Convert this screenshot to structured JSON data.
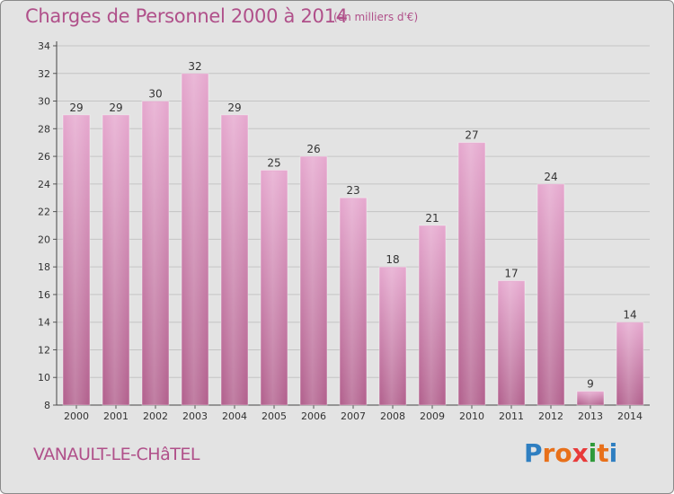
{
  "title": "Charges de Personnel 2000 à 2014",
  "subtitle": "(en milliers d'€)",
  "commune": "VANAULT-LE-CHâTEL",
  "logo": {
    "letters": [
      "P",
      "r",
      "o",
      "x",
      "i",
      "t",
      "i"
    ],
    "colors": [
      "#2f7fc1",
      "#e8701a",
      "#e8701a",
      "#e83a3a",
      "#2f9a3a",
      "#e8701a",
      "#2f7fc1"
    ]
  },
  "colors": {
    "background": "#e3e3e3",
    "bar_top": "#e6a9cf",
    "bar_bottom": "#b3638f",
    "title": "#b0508a",
    "grid": "#c4c4c4"
  },
  "chart_data": {
    "type": "bar",
    "categories": [
      "2000",
      "2001",
      "2002",
      "2003",
      "2004",
      "2005",
      "2006",
      "2007",
      "2008",
      "2009",
      "2010",
      "2011",
      "2012",
      "2013",
      "2014"
    ],
    "values": [
      29,
      29,
      30,
      32,
      29,
      25,
      26,
      23,
      18,
      21,
      27,
      17,
      24,
      9,
      14
    ],
    "data_labels": [
      "29",
      "29",
      "30",
      "32",
      "29",
      "25",
      "26",
      "23",
      "18",
      "21",
      "27",
      "17",
      "24",
      "9",
      "14"
    ],
    "title": "Charges de Personnel 2000 à 2014",
    "xlabel": "",
    "ylabel": "",
    "ylim": [
      8,
      34
    ],
    "yticks": [
      "8",
      "10",
      "12",
      "14",
      "16",
      "18",
      "20",
      "22",
      "24",
      "26",
      "28",
      "30",
      "32",
      "34"
    ],
    "grid": true
  }
}
